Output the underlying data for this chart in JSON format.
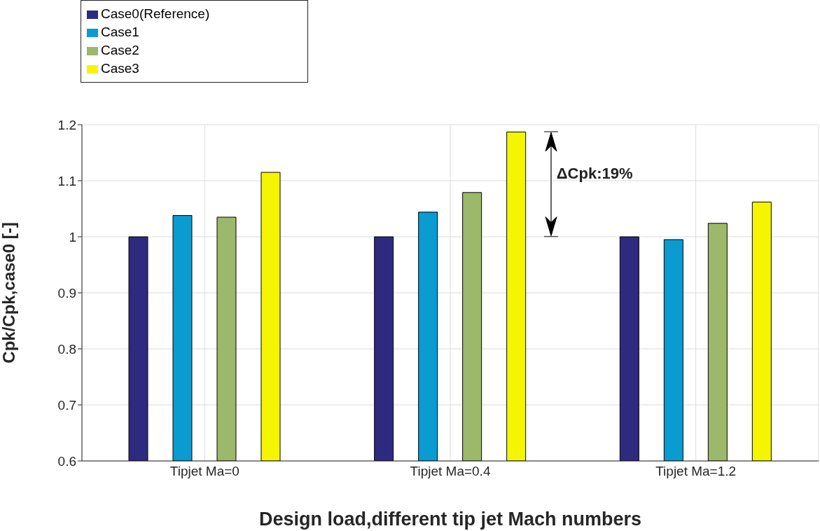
{
  "chart_data": {
    "type": "bar",
    "xlabel": "Design load,different tip jet Mach numbers",
    "ylabel": "Cpk/Cpk,case0 [-]",
    "categories": [
      "Tipjet Ma=0",
      "Tipjet Ma=0.4",
      "Tipjet Ma=1.2"
    ],
    "series": [
      {
        "name": "Case0(Reference)",
        "color": "#2e2a80",
        "values": [
          1.0,
          1.0,
          1.0
        ]
      },
      {
        "name": "Case1",
        "color": "#0a9bd1",
        "values": [
          1.038,
          1.044,
          0.995
        ]
      },
      {
        "name": "Case2",
        "color": "#9cb86a",
        "values": [
          1.035,
          1.079,
          1.024
        ]
      },
      {
        "name": "Case3",
        "color": "#f5f500",
        "values": [
          1.115,
          1.187,
          1.062
        ]
      }
    ],
    "ylim": [
      0.6,
      1.2
    ],
    "yticks": [
      0.6,
      0.7,
      0.8,
      0.9,
      1,
      1.1,
      1.2
    ],
    "grid": true,
    "legend": "top left",
    "annotations": [
      "ΔCpk:19%"
    ]
  }
}
